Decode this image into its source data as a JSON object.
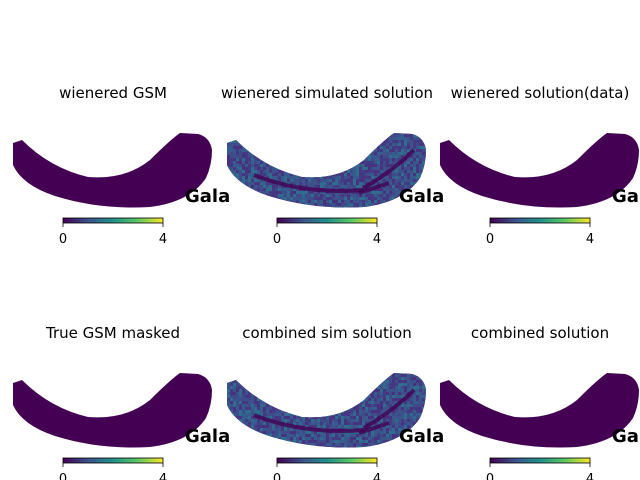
{
  "figure": {
    "colormap": [
      "#440154",
      "#3b528b",
      "#21918c",
      "#5ec962",
      "#fde725"
    ],
    "masked_color": "#440154",
    "noise_colors": [
      "#46327e",
      "#3e4a89",
      "#365c8d",
      "#3b528b",
      "#443a83",
      "#2f6c8e"
    ],
    "panels": [
      {
        "title": "wienered GSM",
        "coord_label": "Gala",
        "colorbar": {
          "ticks": [
            {
              "label": "0"
            },
            {
              "label": "4"
            }
          ]
        },
        "map_style": "uniform"
      },
      {
        "title": "wienered simulated solution",
        "coord_label": "Gala",
        "colorbar": {
          "ticks": [
            {
              "label": "0"
            },
            {
              "label": "4"
            }
          ]
        },
        "map_style": "noisy"
      },
      {
        "title": "wienered solution(data)",
        "coord_label": "Gala",
        "colorbar": {
          "ticks": [
            {
              "label": "0"
            },
            {
              "label": "4"
            }
          ]
        },
        "map_style": "uniform"
      },
      {
        "title": "True GSM masked",
        "coord_label": "Gala",
        "colorbar": {
          "ticks": [
            {
              "label": "0"
            },
            {
              "label": "4"
            }
          ]
        },
        "map_style": "uniform"
      },
      {
        "title": "combined sim solution",
        "coord_label": "Gala",
        "colorbar": {
          "ticks": [
            {
              "label": "0"
            },
            {
              "label": "4"
            }
          ]
        },
        "map_style": "noisy"
      },
      {
        "title": "combined solution",
        "coord_label": "Gala",
        "colorbar": {
          "ticks": [
            {
              "label": "0"
            },
            {
              "label": "4"
            }
          ]
        },
        "map_style": "uniform"
      }
    ]
  }
}
